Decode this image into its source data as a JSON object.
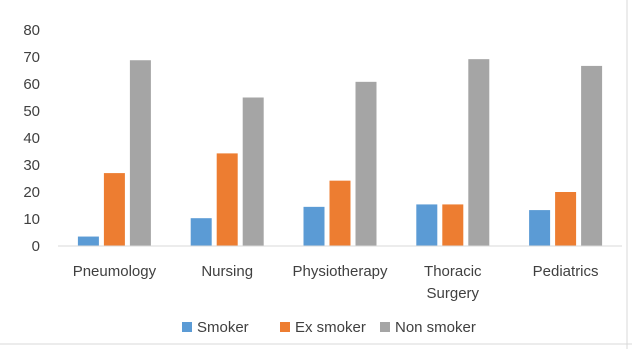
{
  "chart_data": {
    "type": "bar",
    "categories": [
      "Pneumology",
      "Nursing",
      "Physiotherapy",
      "Thoracic Surgery",
      "Pediatrics"
    ],
    "category_lines": [
      [
        "Pneumology"
      ],
      [
        "Nursing"
      ],
      [
        "Physiotherapy"
      ],
      [
        "Thoracic",
        "Surgery"
      ],
      [
        "Pediatrics"
      ]
    ],
    "series": [
      {
        "name": "Smoker",
        "color": "#5b9bd5",
        "values": [
          3.5,
          10.3,
          14.5,
          15.4,
          13.3
        ]
      },
      {
        "name": "Ex smoker",
        "color": "#ed7d31",
        "values": [
          27.0,
          34.3,
          24.2,
          15.4,
          20.0
        ]
      },
      {
        "name": "Non smoker",
        "color": "#a5a5a5",
        "values": [
          68.8,
          55.0,
          60.8,
          69.2,
          66.7
        ]
      }
    ],
    "yticks": [
      "0",
      "10",
      "20",
      "30",
      "40",
      "50",
      "60",
      "70",
      "80"
    ],
    "ylim": [
      0,
      80
    ],
    "grid": false,
    "legend_position": "bottom"
  }
}
